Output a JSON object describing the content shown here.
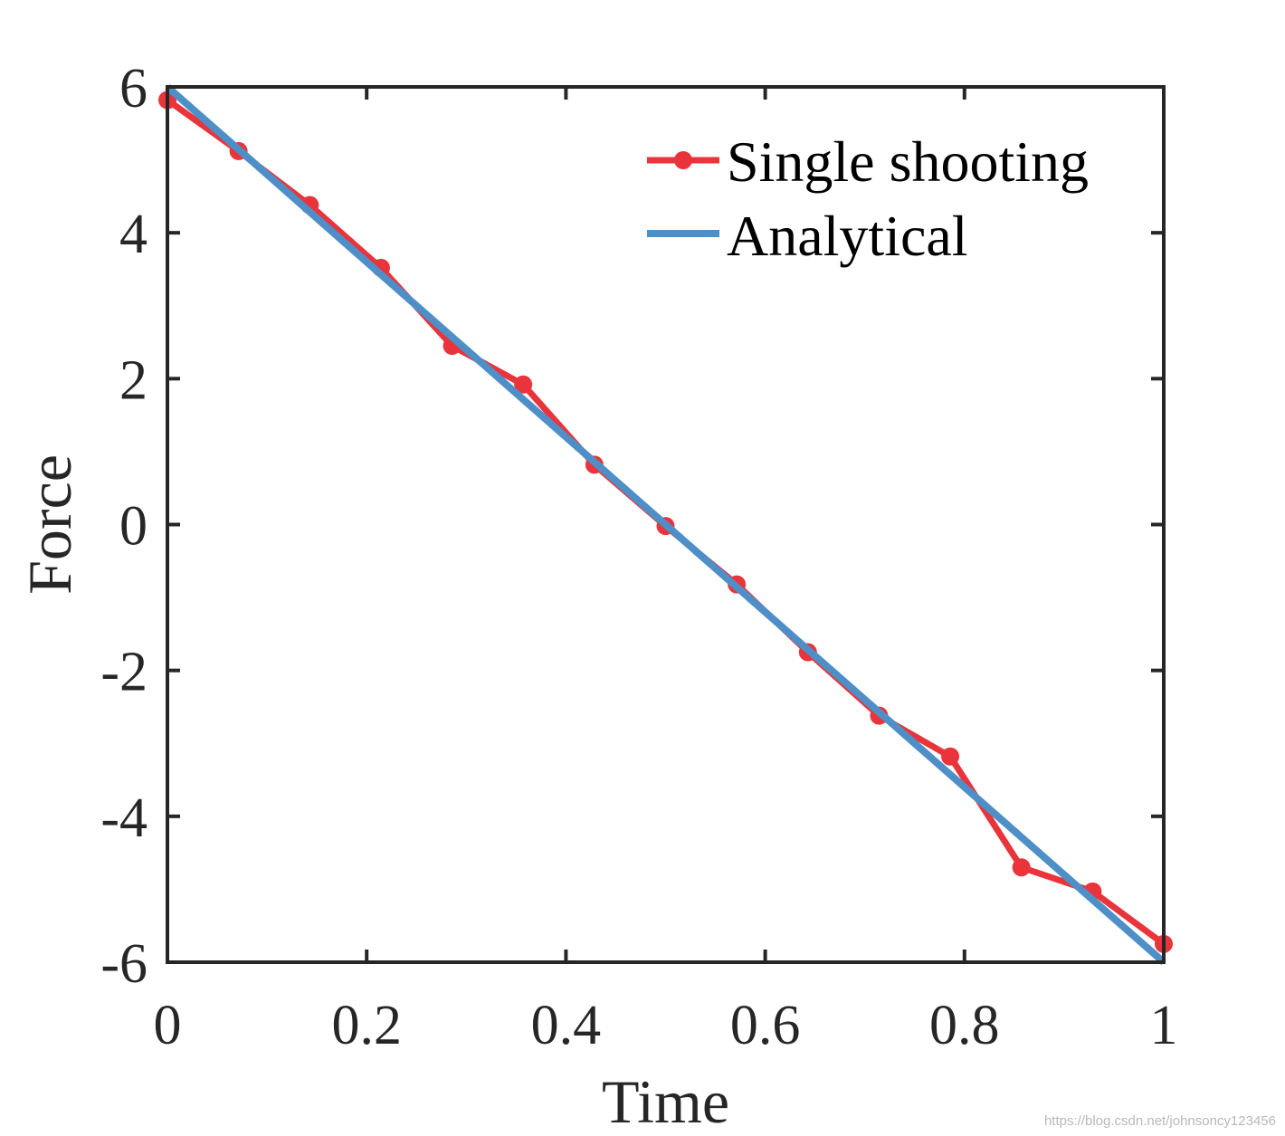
{
  "chart_data": {
    "type": "line",
    "title": "",
    "xlabel": "Time",
    "ylabel": "Force",
    "xlim": [
      0,
      1
    ],
    "ylim": [
      -6,
      6
    ],
    "xticks": [
      0,
      0.2,
      0.4,
      0.6,
      0.8,
      1
    ],
    "xtick_labels": [
      "0",
      "0.2",
      "0.4",
      "0.6",
      "0.8",
      "1"
    ],
    "yticks": [
      -6,
      -4,
      -2,
      0,
      2,
      4,
      6
    ],
    "ytick_labels": [
      "-6",
      "-4",
      "-2",
      "0",
      "2",
      "4",
      "6"
    ],
    "grid": false,
    "legend_position": "top-right",
    "series": [
      {
        "name": "Single shooting",
        "color": "#e8343a",
        "marker": "circle",
        "x": [
          0,
          0.0714,
          0.1429,
          0.2143,
          0.2857,
          0.3571,
          0.4286,
          0.5,
          0.5714,
          0.6429,
          0.7143,
          0.7857,
          0.8571,
          0.9286,
          1
        ],
        "y": [
          5.82,
          5.12,
          4.38,
          3.52,
          2.45,
          1.92,
          0.82,
          -0.02,
          -0.82,
          -1.75,
          -2.62,
          -3.18,
          -4.7,
          -5.03,
          -5.75
        ]
      },
      {
        "name": "Analytical",
        "color": "#4f8fc8",
        "marker": "none",
        "x": [
          0,
          1
        ],
        "y": [
          6,
          -6
        ]
      }
    ]
  },
  "watermark": "https://blog.csdn.net/johnsoncy123456"
}
